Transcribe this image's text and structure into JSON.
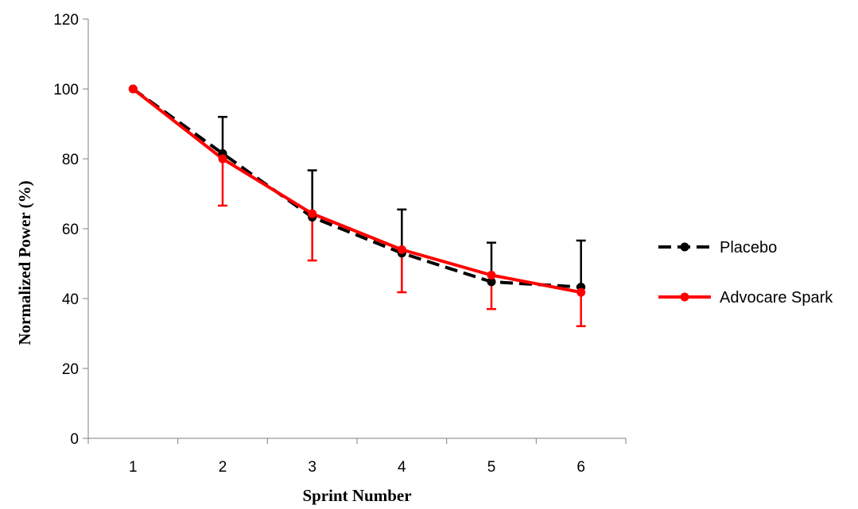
{
  "chart_data": {
    "type": "line",
    "title": "",
    "xlabel": "Sprint Number",
    "ylabel": "Normalized Power (%)",
    "x": [
      1,
      2,
      3,
      4,
      5,
      6
    ],
    "x_tick_labels": [
      "1",
      "2",
      "3",
      "4",
      "5",
      "6"
    ],
    "ylim": [
      0,
      120
    ],
    "y_ticks": [
      0,
      20,
      40,
      60,
      80,
      100,
      120
    ],
    "y_tick_labels": [
      "0",
      "20",
      "40",
      "60",
      "80",
      "100",
      "120"
    ],
    "grid": false,
    "legend_position": "right",
    "series": [
      {
        "name": "Placebo",
        "color": "#000000",
        "line_style": "dashed",
        "values": [
          100,
          81.5,
          63.3,
          53,
          44.8,
          43.3
        ],
        "error_upper": [
          0,
          10.5,
          13.4,
          12.5,
          11.2,
          13.3
        ],
        "error_direction": "up"
      },
      {
        "name": "Advocare Spark",
        "color": "#ff0000",
        "line_style": "solid",
        "values": [
          100,
          80,
          64.3,
          54,
          46.7,
          41.8
        ],
        "error_lower": [
          0,
          13.4,
          13.4,
          12.2,
          9.7,
          9.7
        ],
        "error_direction": "down"
      }
    ]
  }
}
